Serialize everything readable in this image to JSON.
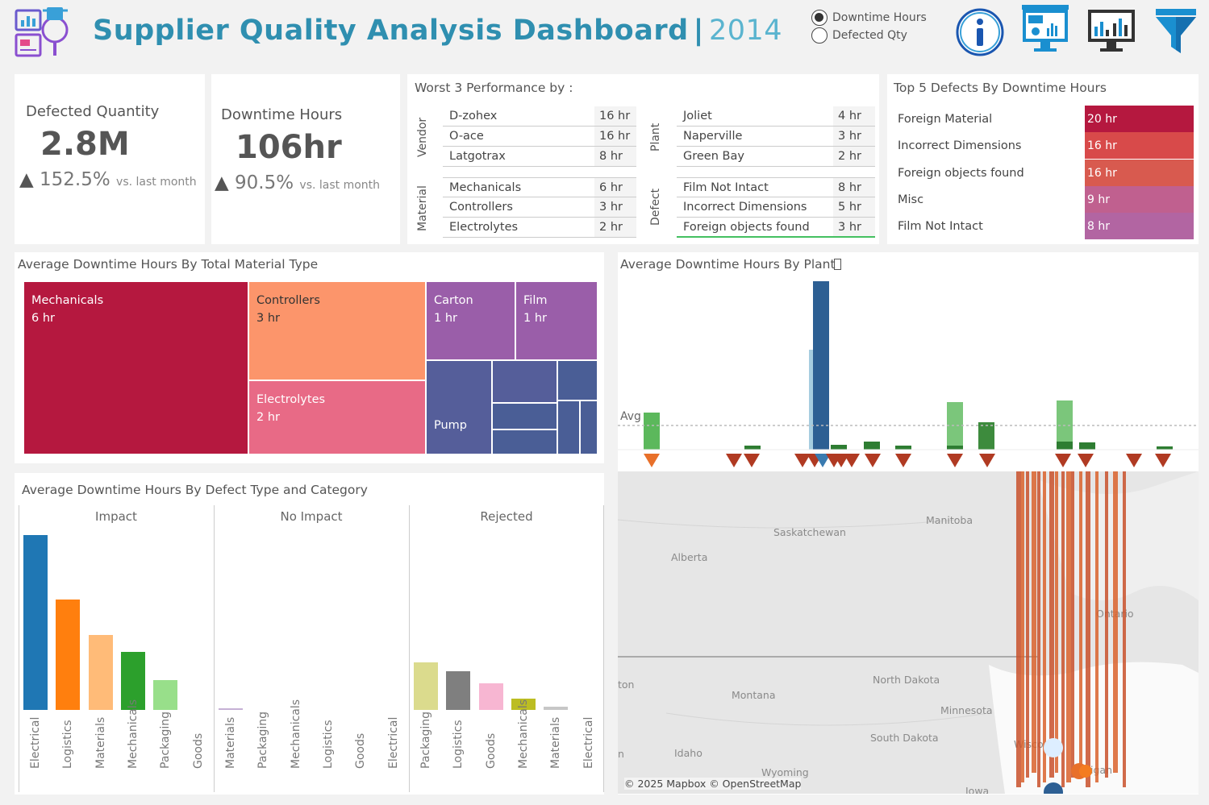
{
  "header": {
    "title": "Supplier Quality Analysis Dashboard",
    "separator": "|",
    "year": "2014",
    "radio_options": [
      {
        "label": "Downtime Hours",
        "selected": true
      },
      {
        "label": "Defected Qty",
        "selected": false
      }
    ],
    "icons": [
      "info-icon",
      "dashboard-monitor-icon",
      "analytics-monitor-icon",
      "filter-icon"
    ]
  },
  "kpis": [
    {
      "label": "Defected Quantity",
      "value": "2.8M",
      "change": "152.5%",
      "change_note": "vs. last month"
    },
    {
      "label": "Downtime Hours",
      "value": "106hr",
      "change": "90.5%",
      "change_note": "vs. last month"
    }
  ],
  "worst3": {
    "title": "Worst 3 Performance by :",
    "vendor_label": "Vendor",
    "material_label": "Material",
    "plant_label": "Plant",
    "defect_label": "Defect",
    "vendor": [
      {
        "name": "D-zohex",
        "value": "16 hr"
      },
      {
        "name": "O-ace",
        "value": "16 hr"
      },
      {
        "name": "Latgotrax",
        "value": "8 hr"
      }
    ],
    "material": [
      {
        "name": "Mechanicals",
        "value": "6 hr"
      },
      {
        "name": "Controllers",
        "value": "3 hr"
      },
      {
        "name": "Electrolytes",
        "value": "2 hr"
      }
    ],
    "plant": [
      {
        "name": "Joliet",
        "value": "4 hr"
      },
      {
        "name": "Naperville",
        "value": "3 hr"
      },
      {
        "name": "Green Bay",
        "value": "2 hr"
      }
    ],
    "defect": [
      {
        "name": "Film Not Intact",
        "value": "8 hr"
      },
      {
        "name": "Incorrect Dimensions",
        "value": "5 hr"
      },
      {
        "name": "Foreign objects found",
        "value": "3 hr"
      }
    ]
  },
  "top5": {
    "title": "Top 5 Defects By Downtime Hours",
    "rows": [
      {
        "name": "Foreign Material",
        "value": "20 hr",
        "color": "#b5183f"
      },
      {
        "name": "Incorrect Dimensions",
        "value": "16 hr",
        "color": "#d84a4a"
      },
      {
        "name": "Foreign objects found",
        "value": "16 hr",
        "color": "#d85a4f"
      },
      {
        "name": "Misc",
        "value": "9 hr",
        "color": "#c0608f"
      },
      {
        "name": "Film Not Intact",
        "value": "8 hr",
        "color": "#b265a2"
      }
    ]
  },
  "treemap": {
    "title": "Average Downtime Hours By Total Material Type",
    "cells": [
      {
        "name": "Mechanicals",
        "value": "6 hr",
        "color": "#b5183f"
      },
      {
        "name": "Controllers",
        "value": "3 hr",
        "color": "#fc956b"
      },
      {
        "name": "Electrolytes",
        "value": "2 hr",
        "color": "#e86a86"
      },
      {
        "name": "Carton",
        "value": "1 hr",
        "color": "#9a5ea9"
      },
      {
        "name": "Film",
        "value": "1 hr",
        "color": "#9a5ea9"
      },
      {
        "name": "Pump",
        "value": "",
        "color": "#555e9a"
      }
    ]
  },
  "plant_chart": {
    "title": "Average Downtime Hours By Plant",
    "avg_label": "Avg"
  },
  "defect_chart": {
    "title": "Average  Downtime Hours By Defect Type and Category",
    "facets": [
      {
        "name": "Impact",
        "categories": [
          "Electrical",
          "Logistics",
          "Materials",
          "Mechanicals",
          "Packaging",
          "Goods"
        ],
        "values": [
          1.0,
          0.63,
          0.43,
          0.33,
          0.17,
          0
        ],
        "colors": [
          "#1f77b4",
          "#ff7f0e",
          "#ffbb78",
          "#2ca02c",
          "#98df8a",
          "#cccccc"
        ]
      },
      {
        "name": "No Impact",
        "categories": [
          "Materials",
          "Packaging",
          "Mechanicals",
          "Logistics",
          "Goods",
          "Electrical"
        ],
        "values": [
          0.005,
          0,
          0,
          0,
          0,
          0
        ],
        "colors": [
          "#c5b0d5",
          "#cccccc",
          "#cccccc",
          "#cccccc",
          "#cccccc",
          "#cccccc"
        ]
      },
      {
        "name": "Rejected",
        "categories": [
          "Packaging",
          "Logistics",
          "Goods",
          "Mechanicals",
          "Materials",
          "Electrical"
        ],
        "values": [
          0.27,
          0.22,
          0.15,
          0.065,
          0.02,
          0
        ],
        "colors": [
          "#dbdb8d",
          "#7f7f7f",
          "#f7b6d2",
          "#bcbd22",
          "#c7c7c7",
          "#cccccc"
        ]
      }
    ]
  },
  "map": {
    "labels": [
      "Saskatchewan",
      "Manitoba",
      "Alberta",
      "Ontario",
      "Montana",
      "North Dakota",
      "Minnesota",
      "South Dakota",
      "Idaho",
      "Wyoming",
      "Iowa",
      "Wisco",
      "igan",
      "ton",
      "n"
    ],
    "attribution": "© 2025 Mapbox © OpenStreetMap"
  }
}
